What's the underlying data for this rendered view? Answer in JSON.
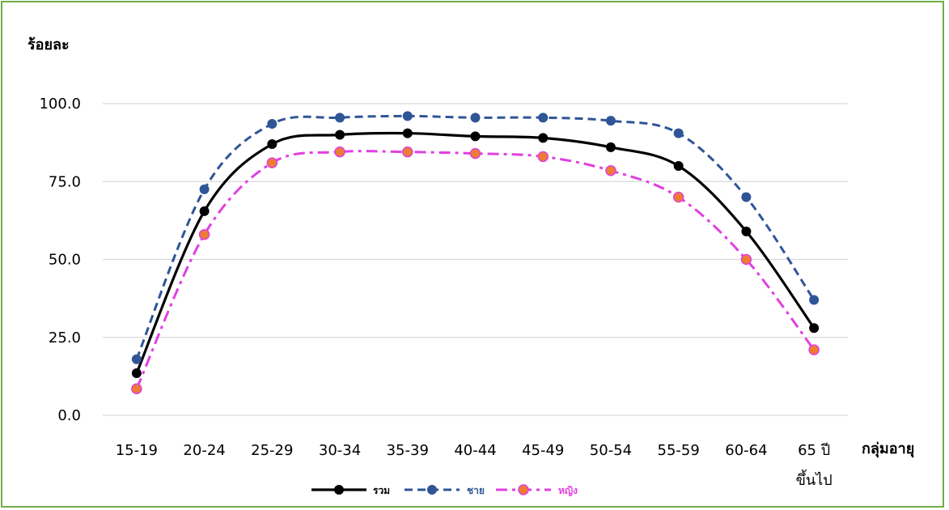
{
  "chart_data": {
    "type": "line",
    "ylabel": "ร้อยละ",
    "xlabel": "กลุ่มอายุ",
    "ylim": [
      0,
      100
    ],
    "yticks": [
      "0.0",
      "25.0",
      "50.0",
      "75.0",
      "100.0"
    ],
    "ytick_values": [
      0,
      25,
      50,
      75,
      100
    ],
    "grid": true,
    "legend_position": "bottom",
    "categories": [
      "15-19",
      "20-24",
      "25-29",
      "30-34",
      "35-39",
      "40-44",
      "45-49",
      "50-54",
      "55-59",
      "60-64",
      "65 ปี ขึ้นไป"
    ],
    "category_lines": [
      [
        "15-19"
      ],
      [
        "20-24"
      ],
      [
        "25-29"
      ],
      [
        "30-34"
      ],
      [
        "35-39"
      ],
      [
        "40-44"
      ],
      [
        "45-49"
      ],
      [
        "50-54"
      ],
      [
        "55-59"
      ],
      [
        "60-64"
      ],
      [
        "65 ปี",
        "ขึ้นไป"
      ]
    ],
    "series": [
      {
        "name": "รวม",
        "values": [
          13.5,
          65.5,
          87.0,
          90.0,
          90.5,
          89.5,
          89.0,
          86.0,
          80.0,
          59.0,
          28.0
        ],
        "color": "#000000",
        "marker_color": "#000000",
        "dash": "solid"
      },
      {
        "name": "ชาย",
        "values": [
          18.0,
          72.5,
          93.5,
          95.5,
          96.0,
          95.5,
          95.5,
          94.5,
          90.5,
          70.0,
          37.0
        ],
        "color": "#2F5597",
        "marker_color": "#2F5597",
        "dash": "dash"
      },
      {
        "name": "หญิง",
        "values": [
          8.5,
          58.0,
          81.0,
          84.5,
          84.5,
          84.0,
          83.0,
          78.5,
          70.0,
          50.0,
          21.0
        ],
        "color": "#E040E0",
        "marker_color": "#ED7D31",
        "dash": "dashdot"
      }
    ]
  }
}
